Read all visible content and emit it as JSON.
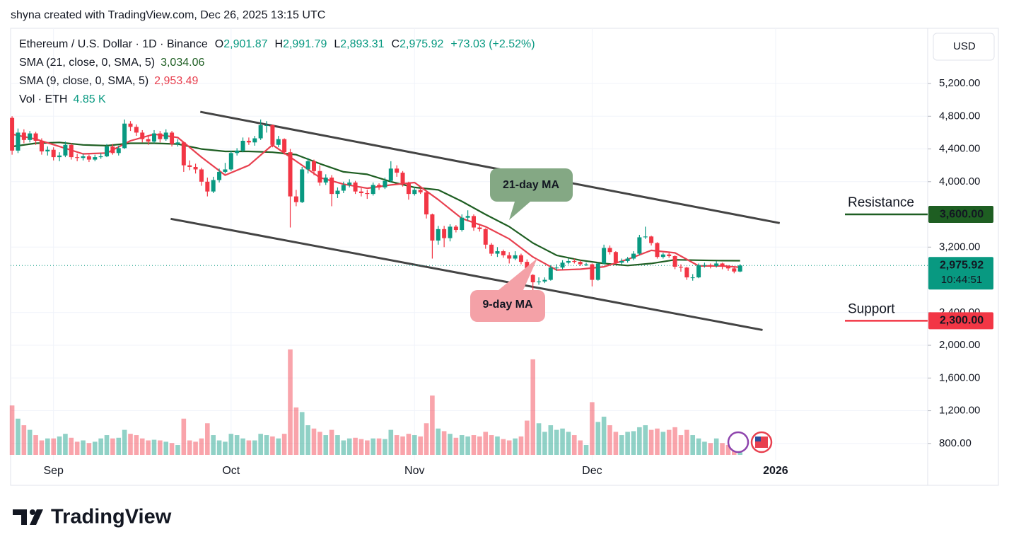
{
  "chart_data": {
    "type": "candlestick",
    "header": "shyna created with TradingView.com, Dec 26, 2025 13:15 UTC",
    "brand": "TradingView",
    "currency": "USD",
    "legend": {
      "symbol": "Ethereum / U.S. Dollar · 1D · Binance",
      "o": "O",
      "open": "2,901.87",
      "h": "H",
      "high": "2,991.79",
      "l": "L",
      "low": "2,893.31",
      "c": "C",
      "close": "2,975.92",
      "change": "+73.03 (+2.52%)"
    },
    "up_color": "#089981",
    "down_color": "#f23645",
    "candles": [
      [
        4780,
        4800,
        4330,
        4380
      ],
      [
        4380,
        4650,
        4350,
        4600
      ],
      [
        4600,
        4640,
        4470,
        4510
      ],
      [
        4510,
        4620,
        4480,
        4590
      ],
      [
        4590,
        4610,
        4450,
        4500
      ],
      [
        4500,
        4530,
        4330,
        4370
      ],
      [
        4370,
        4430,
        4320,
        4390
      ],
      [
        4390,
        4420,
        4260,
        4300
      ],
      [
        4300,
        4360,
        4250,
        4320
      ],
      [
        4320,
        4490,
        4300,
        4450
      ],
      [
        4450,
        4470,
        4270,
        4300
      ],
      [
        4300,
        4340,
        4250,
        4290
      ],
      [
        4290,
        4340,
        4260,
        4310
      ],
      [
        4310,
        4330,
        4240,
        4270
      ],
      [
        4270,
        4330,
        4250,
        4300
      ],
      [
        4300,
        4350,
        4280,
        4310
      ],
      [
        4310,
        4460,
        4300,
        4430
      ],
      [
        4430,
        4460,
        4330,
        4350
      ],
      [
        4350,
        4440,
        4320,
        4410
      ],
      [
        4410,
        4760,
        4400,
        4710
      ],
      [
        4710,
        4740,
        4620,
        4670
      ],
      [
        4670,
        4700,
        4560,
        4600
      ],
      [
        4600,
        4630,
        4480,
        4520
      ],
      [
        4520,
        4560,
        4450,
        4490
      ],
      [
        4490,
        4630,
        4470,
        4590
      ],
      [
        4590,
        4620,
        4480,
        4520
      ],
      [
        4520,
        4640,
        4500,
        4600
      ],
      [
        4600,
        4620,
        4430,
        4460
      ],
      [
        4460,
        4520,
        4430,
        4480
      ],
      [
        4480,
        4490,
        4120,
        4200
      ],
      [
        4200,
        4260,
        4140,
        4180
      ],
      [
        4180,
        4220,
        4100,
        4150
      ],
      [
        4150,
        4170,
        3950,
        4000
      ],
      [
        4000,
        4050,
        3820,
        3880
      ],
      [
        3880,
        4060,
        3860,
        4020
      ],
      [
        4020,
        4160,
        3990,
        4120
      ],
      [
        4120,
        4230,
        4100,
        4150
      ],
      [
        4150,
        4380,
        4130,
        4350
      ],
      [
        4350,
        4410,
        4320,
        4380
      ],
      [
        4380,
        4540,
        4360,
        4500
      ],
      [
        4500,
        4540,
        4450,
        4480
      ],
      [
        4480,
        4560,
        4440,
        4530
      ],
      [
        4530,
        4760,
        4510,
        4690
      ],
      [
        4690,
        4740,
        4600,
        4690
      ],
      [
        4690,
        4700,
        4420,
        4450
      ],
      [
        4450,
        4560,
        4420,
        4520
      ],
      [
        4520,
        4530,
        4330,
        4360
      ],
      [
        4360,
        4400,
        3440,
        3820
      ],
      [
        3820,
        3900,
        3700,
        3750
      ],
      [
        3750,
        4180,
        3740,
        4150
      ],
      [
        4150,
        4290,
        4100,
        4250
      ],
      [
        4250,
        4270,
        4080,
        4130
      ],
      [
        4130,
        4200,
        3950,
        3990
      ],
      [
        3990,
        4090,
        3960,
        4050
      ],
      [
        4050,
        4080,
        3700,
        3850
      ],
      [
        3850,
        3930,
        3800,
        3890
      ],
      [
        3890,
        4000,
        3860,
        3960
      ],
      [
        3960,
        4030,
        3930,
        3990
      ],
      [
        3990,
        4010,
        3850,
        3880
      ],
      [
        3880,
        3920,
        3820,
        3860
      ],
      [
        3860,
        3900,
        3790,
        3850
      ],
      [
        3850,
        3990,
        3830,
        3960
      ],
      [
        3960,
        3980,
        3900,
        3930
      ],
      [
        3930,
        4050,
        3910,
        4010
      ],
      [
        4010,
        4250,
        3990,
        4160
      ],
      [
        4160,
        4200,
        4060,
        4110
      ],
      [
        4110,
        4130,
        3940,
        3980
      ],
      [
        3980,
        4000,
        3780,
        3850
      ],
      [
        3850,
        3930,
        3830,
        3900
      ],
      [
        3900,
        3920,
        3850,
        3870
      ],
      [
        3870,
        3880,
        3550,
        3600
      ],
      [
        3600,
        3610,
        3060,
        3280
      ],
      [
        3280,
        3460,
        3230,
        3420
      ],
      [
        3420,
        3460,
        3200,
        3310
      ],
      [
        3310,
        3480,
        3270,
        3450
      ],
      [
        3450,
        3470,
        3380,
        3410
      ],
      [
        3410,
        3600,
        3390,
        3560
      ],
      [
        3560,
        3650,
        3520,
        3580
      ],
      [
        3580,
        3600,
        3400,
        3440
      ],
      [
        3440,
        3480,
        3390,
        3420
      ],
      [
        3420,
        3430,
        3180,
        3230
      ],
      [
        3230,
        3250,
        3090,
        3120
      ],
      [
        3120,
        3200,
        3080,
        3150
      ],
      [
        3150,
        3170,
        3070,
        3100
      ],
      [
        3100,
        3140,
        3000,
        3060
      ],
      [
        3060,
        3150,
        3040,
        3100
      ],
      [
        3100,
        3120,
        2990,
        3020
      ],
      [
        3020,
        3050,
        2820,
        2860
      ],
      [
        2860,
        2870,
        2620,
        2770
      ],
      [
        2770,
        2830,
        2740,
        2780
      ],
      [
        2780,
        2830,
        2760,
        2800
      ],
      [
        2800,
        2980,
        2790,
        2950
      ],
      [
        2950,
        2990,
        2910,
        2950
      ],
      [
        2950,
        3040,
        2930,
        3010
      ],
      [
        3010,
        3060,
        2990,
        3030
      ],
      [
        3030,
        3060,
        3000,
        3020
      ],
      [
        3020,
        3040,
        2970,
        2990
      ],
      [
        2990,
        3010,
        2970,
        2990
      ],
      [
        2990,
        3000,
        2720,
        2800
      ],
      [
        2800,
        3010,
        2790,
        3000
      ],
      [
        3000,
        3230,
        2990,
        3190
      ],
      [
        3190,
        3220,
        3110,
        3140
      ],
      [
        3140,
        3150,
        2990,
        3010
      ],
      [
        3010,
        3060,
        2990,
        3030
      ],
      [
        3030,
        3080,
        3010,
        3060
      ],
      [
        3060,
        3150,
        3040,
        3120
      ],
      [
        3120,
        3350,
        3100,
        3320
      ],
      [
        3320,
        3450,
        3300,
        3330
      ],
      [
        3330,
        3340,
        3220,
        3250
      ],
      [
        3250,
        3260,
        3060,
        3080
      ],
      [
        3080,
        3130,
        3060,
        3110
      ],
      [
        3110,
        3130,
        3070,
        3090
      ],
      [
        3090,
        3100,
        2930,
        2960
      ],
      [
        2960,
        2990,
        2900,
        2950
      ],
      [
        2950,
        2960,
        2800,
        2830
      ],
      [
        2830,
        2870,
        2790,
        2830
      ],
      [
        2830,
        3000,
        2820,
        2980
      ],
      [
        2980,
        3010,
        2950,
        2980
      ],
      [
        2980,
        3000,
        2940,
        2970
      ],
      [
        2970,
        3030,
        2950,
        3000
      ],
      [
        3000,
        3010,
        2930,
        2960
      ],
      [
        2960,
        2980,
        2910,
        2940
      ],
      [
        2940,
        2960,
        2880,
        2901.87
      ],
      [
        2901.87,
        2991.79,
        2893.31,
        2975.92
      ]
    ],
    "volume": {
      "name": "Vol · ETH",
      "value_label": "4.85 K",
      "lim": [
        0,
        250
      ],
      "values": [
        75,
        55,
        45,
        38,
        30,
        22,
        25,
        25,
        28,
        32,
        26,
        20,
        22,
        18,
        20,
        25,
        30,
        25,
        26,
        38,
        32,
        30,
        25,
        22,
        23,
        22,
        20,
        18,
        15,
        55,
        22,
        20,
        25,
        48,
        30,
        22,
        20,
        32,
        30,
        25,
        22,
        22,
        32,
        30,
        28,
        25,
        32,
        160,
        72,
        65,
        45,
        40,
        35,
        30,
        38,
        30,
        22,
        25,
        26,
        24,
        22,
        25,
        25,
        24,
        38,
        30,
        28,
        32,
        30,
        28,
        48,
        90,
        40,
        36,
        32,
        26,
        30,
        28,
        30,
        28,
        35,
        30,
        28,
        24,
        22,
        25,
        28,
        52,
        145,
        48,
        35,
        45,
        38,
        40,
        35,
        30,
        22,
        15,
        80,
        50,
        58,
        45,
        35,
        30,
        35,
        36,
        42,
        45,
        38,
        40,
        35,
        38,
        42,
        30,
        38,
        30,
        25,
        20,
        18,
        25,
        18,
        15,
        12,
        4.85
      ]
    },
    "series": [
      {
        "name": "SMA (21, close, 0, SMA, 5)",
        "color": "#1e5e22",
        "value_label": "3,034.06",
        "x": [
          0,
          4,
          8,
          12,
          16,
          20,
          24,
          28,
          32,
          36,
          40,
          44,
          48,
          52,
          56,
          60,
          64,
          68,
          72,
          76,
          80,
          84,
          88,
          92,
          96,
          100,
          104,
          108,
          112,
          116,
          120,
          123
        ],
        "values": [
          4430,
          4470,
          4480,
          4450,
          4440,
          4470,
          4470,
          4460,
          4400,
          4370,
          4370,
          4360,
          4330,
          4220,
          4120,
          4090,
          4000,
          3930,
          3900,
          3760,
          3600,
          3450,
          3250,
          3100,
          3040,
          3000,
          2975,
          3000,
          3045,
          3040,
          3035,
          3034.06
        ]
      },
      {
        "name": "SMA (9, close, 0, SMA, 5)",
        "color": "#e8404f",
        "value_label": "2,953.49",
        "x": [
          0,
          4,
          8,
          12,
          16,
          20,
          24,
          28,
          32,
          36,
          40,
          44,
          48,
          52,
          56,
          60,
          64,
          68,
          72,
          76,
          80,
          84,
          88,
          92,
          96,
          100,
          104,
          108,
          112,
          116,
          120,
          123
        ],
        "values": [
          4580,
          4520,
          4430,
          4340,
          4350,
          4500,
          4580,
          4540,
          4300,
          4080,
          4200,
          4450,
          4250,
          4050,
          3970,
          3920,
          3960,
          3990,
          3780,
          3550,
          3450,
          3300,
          3080,
          2920,
          2930,
          2960,
          3050,
          3160,
          3130,
          2970,
          2970,
          2953.49
        ]
      }
    ],
    "xlim": [
      -0.25,
      154.7
    ],
    "xticks": [
      {
        "value": 7,
        "label": "Sep"
      },
      {
        "value": 37,
        "label": "Oct"
      },
      {
        "value": 68,
        "label": "Nov"
      },
      {
        "value": 98,
        "label": "Dec"
      },
      {
        "value": 129,
        "label": "2026"
      }
    ],
    "ylim": [
      660,
      5875
    ],
    "yticks": [
      {
        "value": 800,
        "label": "800.00"
      },
      {
        "value": 1200,
        "label": "1,200.00"
      },
      {
        "value": 1600,
        "label": "1,600.00"
      },
      {
        "value": 2000,
        "label": "2,000.00"
      },
      {
        "value": 2400,
        "label": "2,400.00"
      },
      {
        "value": 3200,
        "label": "3,200.00"
      },
      {
        "value": 4000,
        "label": "4,000.00"
      },
      {
        "value": 4400,
        "label": "4,400.00"
      },
      {
        "value": 4800,
        "label": "4,800.00"
      },
      {
        "value": 5200,
        "label": "5,200.00"
      }
    ],
    "grid": true,
    "last_price": {
      "label": "2,975.92",
      "countdown": "10:44:51",
      "color": "#089981"
    },
    "levels": [
      {
        "label": "Resistance",
        "value": 3600,
        "value_label": "3,600.00",
        "color": "#1e5e22",
        "text_color": "#e8404f"
      },
      {
        "label": "Support",
        "value": 2300,
        "value_label": "2,300.00",
        "color": "#f23645",
        "text_color": "#1e5e22"
      }
    ],
    "trend_lines": [
      {
        "x": [
          31.8,
          129.7
        ],
        "values": [
          4854,
          3494
        ]
      },
      {
        "x": [
          26.8,
          126.8
        ],
        "values": [
          3546,
          2187
        ]
      }
    ],
    "annotations": [
      {
        "text": "21-day MA",
        "color": "#84a884"
      },
      {
        "text": "9-day MA",
        "color": "#f4a1a7"
      }
    ]
  }
}
